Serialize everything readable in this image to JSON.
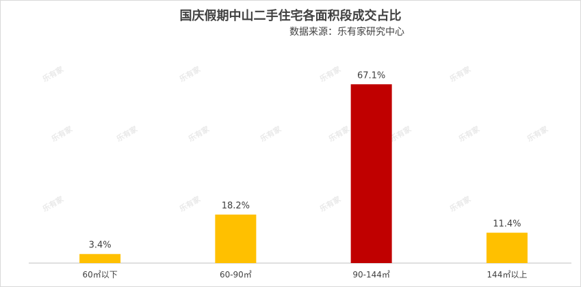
{
  "chart_data": {
    "type": "bar",
    "title": "国庆假期中山二手住宅各面积段成交占比",
    "subtitle": "数据来源：乐有家研究中心",
    "categories": [
      "60㎡以下",
      "60-90㎡",
      "90-144㎡",
      "144㎡以上"
    ],
    "values": [
      3.4,
      18.2,
      67.1,
      11.4
    ],
    "data_labels": [
      "3.4%",
      "18.2%",
      "67.1%",
      "11.4%"
    ],
    "colors": [
      "#FFC000",
      "#FFC000",
      "#C00000",
      "#FFC000"
    ],
    "ylim": [
      0,
      80
    ],
    "grid": false,
    "legend": "none"
  },
  "watermark": "乐有家"
}
